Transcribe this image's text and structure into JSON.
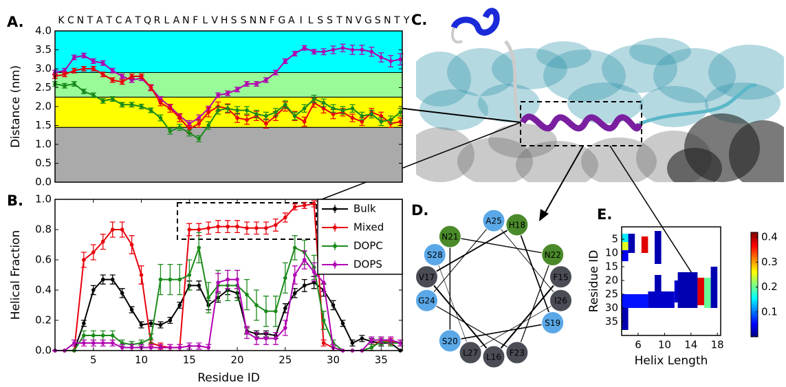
{
  "chart_data": [
    {
      "type": "line",
      "panel": "A.",
      "ylabel": "Distance (nm)",
      "categories": [
        "K",
        "C",
        "N",
        "T",
        "A",
        "T",
        "C",
        "A",
        "T",
        "Q",
        "R",
        "L",
        "A",
        "N",
        "F",
        "L",
        "V",
        "H",
        "S",
        "S",
        "N",
        "N",
        "F",
        "G",
        "A",
        "I",
        "L",
        "S",
        "S",
        "T",
        "N",
        "V",
        "G",
        "S",
        "N",
        "T",
        "Y"
      ],
      "ylim": [
        0,
        4
      ],
      "yticks": [
        {
          "value": 0,
          "label": "0.0"
        },
        {
          "value": 0.5,
          "label": "0.5"
        },
        {
          "value": 1,
          "label": "1.0"
        },
        {
          "value": 1.5,
          "label": "1.5"
        },
        {
          "value": 2,
          "label": "2.0"
        },
        {
          "value": 2.5,
          "label": "2.5"
        },
        {
          "value": 3,
          "label": "3.0"
        },
        {
          "value": 3.5,
          "label": "3.5"
        },
        {
          "value": 4,
          "label": "4.0"
        }
      ],
      "bands": [
        {
          "from": 0,
          "to": 1.45,
          "color": "#aaaaaa"
        },
        {
          "from": 1.45,
          "to": 2.25,
          "color": "#ffff00"
        },
        {
          "from": 2.25,
          "to": 2.9,
          "color": "#98fb98"
        },
        {
          "from": 2.9,
          "to": 4,
          "color": "#00ffff"
        }
      ],
      "series": [
        {
          "color": "#b000b0",
          "values": [
            2.9,
            2.95,
            3.3,
            3.35,
            3.2,
            3.15,
            2.95,
            2.8,
            2.7,
            2.75,
            2.5,
            2.2,
            2.0,
            1.75,
            1.55,
            1.7,
            1.95,
            2.3,
            2.35,
            2.45,
            2.6,
            2.6,
            2.7,
            2.9,
            3.2,
            3.4,
            3.55,
            3.45,
            3.45,
            3.5,
            3.55,
            3.5,
            3.5,
            3.45,
            3.3,
            3.2,
            3.25
          ],
          "errors": [
            0.06,
            0.06,
            0.06,
            0.06,
            0.06,
            0.06,
            0.06,
            0.06,
            0.06,
            0.06,
            0.06,
            0.06,
            0.06,
            0.06,
            0.08,
            0.08,
            0.06,
            0.06,
            0.06,
            0.06,
            0.06,
            0.06,
            0.06,
            0.06,
            0.06,
            0.06,
            0.06,
            0.06,
            0.08,
            0.1,
            0.1,
            0.12,
            0.12,
            0.12,
            0.12,
            0.15,
            0.15
          ]
        },
        {
          "color": "#e8000b",
          "values": [
            2.8,
            2.85,
            2.95,
            3.0,
            3.0,
            2.85,
            2.7,
            2.65,
            2.8,
            2.8,
            2.5,
            2.1,
            1.95,
            1.7,
            1.4,
            1.55,
            1.85,
            2.0,
            1.95,
            1.7,
            1.65,
            1.75,
            1.55,
            1.75,
            2.0,
            1.75,
            1.6,
            2.1,
            1.95,
            1.8,
            1.85,
            1.7,
            1.6,
            1.85,
            1.75,
            1.55,
            1.6
          ],
          "errors": [
            0.06,
            0.06,
            0.06,
            0.06,
            0.06,
            0.06,
            0.06,
            0.06,
            0.06,
            0.06,
            0.08,
            0.08,
            0.1,
            0.1,
            0.1,
            0.1,
            0.12,
            0.12,
            0.12,
            0.12,
            0.12,
            0.12,
            0.12,
            0.12,
            0.12,
            0.12,
            0.12,
            0.12,
            0.12,
            0.12,
            0.1,
            0.1,
            0.1,
            0.1,
            0.1,
            0.1,
            0.1
          ]
        },
        {
          "color": "#1a8a1a",
          "values": [
            2.6,
            2.55,
            2.6,
            2.4,
            2.3,
            2.15,
            2.2,
            2.05,
            2.05,
            2.0,
            1.9,
            1.7,
            1.35,
            1.45,
            1.3,
            1.15,
            1.5,
            1.9,
            1.95,
            1.9,
            1.9,
            1.8,
            1.75,
            1.85,
            2.05,
            1.75,
            1.95,
            2.2,
            2.1,
            1.95,
            1.9,
            1.95,
            1.75,
            1.8,
            1.6,
            1.65,
            1.85
          ],
          "errors": [
            0.06,
            0.06,
            0.06,
            0.06,
            0.06,
            0.06,
            0.06,
            0.06,
            0.06,
            0.06,
            0.06,
            0.08,
            0.08,
            0.08,
            0.08,
            0.08,
            0.1,
            0.1,
            0.1,
            0.1,
            0.1,
            0.1,
            0.1,
            0.1,
            0.1,
            0.1,
            0.1,
            0.1,
            0.1,
            0.1,
            0.1,
            0.1,
            0.1,
            0.1,
            0.1,
            0.1,
            0.1
          ]
        }
      ]
    },
    {
      "type": "line",
      "panel": "B.",
      "xlabel": "Residue ID",
      "ylabel": "Helical Fraction",
      "x": [
        1,
        2,
        3,
        4,
        5,
        6,
        7,
        8,
        9,
        10,
        11,
        12,
        13,
        14,
        15,
        16,
        17,
        18,
        19,
        20,
        21,
        22,
        23,
        24,
        25,
        26,
        27,
        28,
        29,
        30,
        31,
        32,
        33,
        34,
        35,
        36,
        37
      ],
      "xlim": [
        1,
        37.2
      ],
      "xticks": [
        5,
        10,
        15,
        20,
        25,
        30,
        35
      ],
      "ylim": [
        0,
        1
      ],
      "yticks": [
        {
          "value": 0,
          "label": "0.0"
        },
        {
          "value": 0.2,
          "label": "0.2"
        },
        {
          "value": 0.4,
          "label": "0.4"
        },
        {
          "value": 0.6,
          "label": "0.6"
        },
        {
          "value": 0.8,
          "label": "0.8"
        },
        {
          "value": 1,
          "label": "1.0"
        }
      ],
      "legend": "upper right",
      "series": [
        {
          "name": "Bulk",
          "color": "#000000",
          "values": [
            0,
            0,
            0,
            0.18,
            0.4,
            0.47,
            0.47,
            0.38,
            0.27,
            0.17,
            0.18,
            0.17,
            0.2,
            0.3,
            0.43,
            0.43,
            0.3,
            0.35,
            0.4,
            0.38,
            0.13,
            0.11,
            0.11,
            0.1,
            0.28,
            0.38,
            0.43,
            0.45,
            0.4,
            0.3,
            0.18,
            0.05,
            0.08,
            0.06,
            0.05,
            0.05,
            0
          ],
          "errors": [
            0,
            0,
            0,
            0.02,
            0.03,
            0.03,
            0.03,
            0.03,
            0.02,
            0.02,
            0.02,
            0.02,
            0.02,
            0.02,
            0.03,
            0.03,
            0.03,
            0.03,
            0.03,
            0.03,
            0.02,
            0.02,
            0.02,
            0.02,
            0.03,
            0.03,
            0.04,
            0.04,
            0.04,
            0.03,
            0.02,
            0.02,
            0.02,
            0.02,
            0.02,
            0.02,
            0
          ]
        },
        {
          "name": "Mixed",
          "color": "#e8000b",
          "values": [
            0,
            0,
            0,
            0.6,
            0.65,
            0.72,
            0.8,
            0.8,
            0.7,
            0.5,
            0.05,
            0.03,
            0.02,
            0.02,
            0.8,
            0.8,
            0.81,
            0.82,
            0.82,
            0.82,
            0.81,
            0.81,
            0.81,
            0.83,
            0.88,
            0.95,
            0.96,
            0.97,
            0.05,
            0.02,
            0,
            0,
            0,
            0.02,
            0.07,
            0.06,
            0.05
          ],
          "errors": [
            0,
            0,
            0,
            0.05,
            0.05,
            0.05,
            0.05,
            0.05,
            0.06,
            0.06,
            0.02,
            0.02,
            0.02,
            0.02,
            0.04,
            0.04,
            0.04,
            0.04,
            0.04,
            0.04,
            0.04,
            0.04,
            0.04,
            0.04,
            0.03,
            0.02,
            0.02,
            0.02,
            0.02,
            0.02,
            0,
            0,
            0,
            0.02,
            0.02,
            0.02,
            0.02
          ]
        },
        {
          "name": "DOPC",
          "color": "#1a8a1a",
          "values": [
            0,
            0,
            0,
            0.1,
            0.1,
            0.1,
            0.1,
            0.05,
            0.04,
            0.05,
            0.08,
            0.47,
            0.47,
            0.47,
            0.5,
            0.68,
            0.35,
            0.43,
            0.43,
            0.43,
            0.37,
            0.3,
            0.26,
            0.26,
            0.48,
            0.68,
            0.65,
            0.55,
            0.2,
            0.05,
            0,
            0,
            0,
            0.02,
            0.06,
            0.05,
            0.05
          ],
          "errors": [
            0,
            0,
            0,
            0.03,
            0.03,
            0.03,
            0.03,
            0.02,
            0.02,
            0.02,
            0.03,
            0.1,
            0.1,
            0.1,
            0.1,
            0.1,
            0.1,
            0.1,
            0.1,
            0.1,
            0.1,
            0.1,
            0.1,
            0.1,
            0.1,
            0.08,
            0.08,
            0.08,
            0.06,
            0.02,
            0,
            0,
            0,
            0.02,
            0.02,
            0.02,
            0.02
          ]
        },
        {
          "name": "DOPS",
          "color": "#b000b0",
          "values": [
            0,
            0,
            0.05,
            0.05,
            0.05,
            0.05,
            0.05,
            0.02,
            0.02,
            0.02,
            0.02,
            0.02,
            0.02,
            0.02,
            0.03,
            0.03,
            0.02,
            0.45,
            0.47,
            0.47,
            0.12,
            0.08,
            0.08,
            0.08,
            0.15,
            0.5,
            0.6,
            0.52,
            0.45,
            0.02,
            0,
            0,
            0,
            0.07,
            0.07,
            0.07,
            0.05
          ],
          "errors": [
            0,
            0,
            0.02,
            0.02,
            0.02,
            0.02,
            0.02,
            0.02,
            0.02,
            0.02,
            0.02,
            0.02,
            0.02,
            0.02,
            0.02,
            0.02,
            0.02,
            0.06,
            0.06,
            0.06,
            0.04,
            0.04,
            0.04,
            0.04,
            0.05,
            0.06,
            0.06,
            0.06,
            0.06,
            0.02,
            0,
            0,
            0,
            0.02,
            0.02,
            0.02,
            0.02
          ]
        }
      ]
    },
    {
      "type": "heatmap",
      "panel": "E.",
      "xlabel": "Helix Length",
      "ylabel": "Residue ID",
      "xlim": [
        3.5,
        18.5
      ],
      "xticks": [
        6,
        10,
        14,
        18
      ],
      "ylim": [
        40,
        0.5
      ],
      "yticks": [
        5,
        10,
        15,
        20,
        25,
        30,
        35
      ],
      "clim": [
        0,
        0.42
      ],
      "cticks": [
        0.1,
        0.2,
        0.3,
        0.4
      ],
      "colormap": "jet",
      "cells": [
        {
          "x": [
            3.5,
            4.5
          ],
          "y": [
            3,
            6
          ],
          "value": 0.15
        },
        {
          "x": [
            3.5,
            4.5
          ],
          "y": [
            6,
            9
          ],
          "value": 0.25
        },
        {
          "x": [
            3.5,
            4.5
          ],
          "y": [
            9,
            13
          ],
          "value": 0.05
        },
        {
          "x": [
            4.5,
            5.5
          ],
          "y": [
            3,
            10
          ],
          "value": 0.02
        },
        {
          "x": [
            6.5,
            7.5
          ],
          "y": [
            4,
            10
          ],
          "value": 0.38
        },
        {
          "x": [
            8.5,
            9.5
          ],
          "y": [
            2,
            14
          ],
          "value": 0.02
        },
        {
          "x": [
            8.5,
            9.5
          ],
          "y": [
            18,
            24
          ],
          "value": 0.02
        },
        {
          "x": [
            3.5,
            7.5
          ],
          "y": [
            25,
            30
          ],
          "value": 0.06
        },
        {
          "x": [
            7.5,
            11.5
          ],
          "y": [
            24,
            30
          ],
          "value": 0.03
        },
        {
          "x": [
            3.5,
            4.5
          ],
          "y": [
            30,
            38
          ],
          "value": 0.02
        },
        {
          "x": [
            11.5,
            12.5
          ],
          "y": [
            20,
            28
          ],
          "value": 0.03
        },
        {
          "x": [
            12,
            15
          ],
          "y": [
            17,
            30
          ],
          "value": 0.02
        },
        {
          "x": [
            15,
            16
          ],
          "y": [
            19,
            29
          ],
          "value": 0.38
        },
        {
          "x": [
            16,
            17
          ],
          "y": [
            19,
            30
          ],
          "value": 0.2
        },
        {
          "x": [
            17,
            18
          ],
          "y": [
            15,
            30
          ],
          "value": 0.02
        }
      ]
    }
  ],
  "wheel": {
    "panel": "D.",
    "nodes": [
      {
        "label": "F15",
        "color": "#4a4d55"
      },
      {
        "label": "L16",
        "color": "#4a4d55"
      },
      {
        "label": "V17",
        "color": "#4a4d55"
      },
      {
        "label": "H18",
        "color": "#4a8a2a"
      },
      {
        "label": "S19",
        "color": "#5aa8e8"
      },
      {
        "label": "S20",
        "color": "#5aa8e8"
      },
      {
        "label": "N21",
        "color": "#4a8a2a"
      },
      {
        "label": "N22",
        "color": "#4a8a2a"
      },
      {
        "label": "F23",
        "color": "#4a4d55"
      },
      {
        "label": "G24",
        "color": "#5aa8e8"
      },
      {
        "label": "A25",
        "color": "#5aa8e8"
      },
      {
        "label": "I26",
        "color": "#4a4d55"
      },
      {
        "label": "L27",
        "color": "#4a4d55"
      },
      {
        "label": "S28",
        "color": "#5aa8e8"
      }
    ]
  },
  "image_panel": {
    "panel": "C."
  }
}
